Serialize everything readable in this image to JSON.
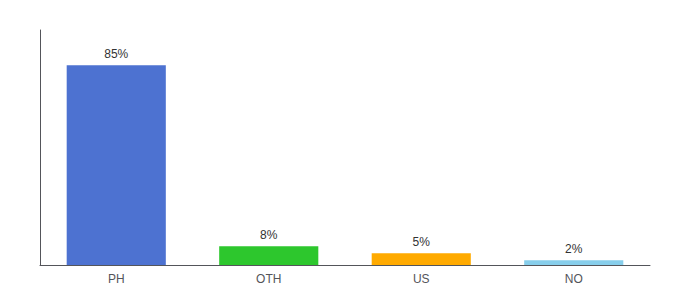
{
  "chart_data": {
    "type": "bar",
    "categories": [
      "PH",
      "OTH",
      "US",
      "NO"
    ],
    "values": [
      85,
      8,
      5,
      2
    ],
    "value_labels": [
      "85%",
      "8%",
      "5%",
      "2%"
    ],
    "data_labels": true,
    "colors": [
      "#4d72d1",
      "#2dc72d",
      "#ffaa00",
      "#87ceeb"
    ],
    "ylim": [
      0,
      100
    ],
    "grid": false,
    "tick_labels": "x"
  }
}
